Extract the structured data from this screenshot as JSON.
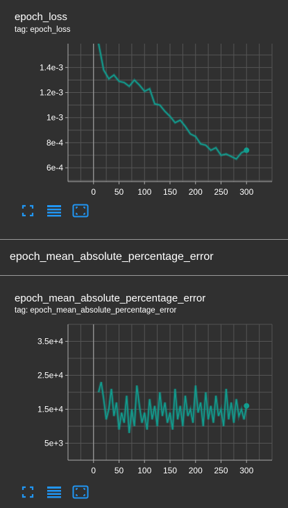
{
  "cards": [
    {
      "title": "epoch_loss",
      "tag": "tag: epoch_loss"
    },
    {
      "title": "epoch_mean_absolute_percentage_error",
      "tag": "tag: epoch_mean_absolute_percentage_error"
    }
  ],
  "section": {
    "title": "epoch_mean_absolute_percentage_error"
  },
  "toolbar": {
    "icons": [
      "fullscreen-icon",
      "list-icon",
      "fit-domain-icon"
    ]
  },
  "colors": {
    "series": "#129c8e",
    "axis": "#aaaaaa",
    "grid": "#555555",
    "accent": "#2196f3"
  },
  "chart_data": [
    {
      "type": "line",
      "title": "epoch_loss",
      "xlabel": "",
      "ylabel": "",
      "xticks": [
        0,
        50,
        100,
        150,
        200,
        250,
        300
      ],
      "yticks": [
        "6e-4",
        "8e-4",
        "1e-3",
        "1.2e-3",
        "1.4e-3"
      ],
      "ytick_values": [
        0.0006,
        0.0008,
        0.001,
        0.0012,
        0.0014
      ],
      "xlim": [
        -50,
        350
      ],
      "ylim": [
        0.00049,
        0.00159
      ],
      "grid": true,
      "series": [
        {
          "x": [
            10,
            20,
            30,
            40,
            50,
            60,
            70,
            80,
            90,
            100,
            110,
            120,
            130,
            140,
            150,
            160,
            170,
            180,
            190,
            200,
            210,
            220,
            230,
            240,
            250,
            260,
            270,
            280,
            290,
            300
          ],
          "y": [
            0.00159,
            0.00138,
            0.00131,
            0.00134,
            0.00129,
            0.00128,
            0.00125,
            0.0013,
            0.00126,
            0.00121,
            0.00123,
            0.00111,
            0.0011,
            0.00105,
            0.00101,
            0.00096,
            0.00098,
            0.00093,
            0.00087,
            0.00085,
            0.00079,
            0.00078,
            0.00074,
            0.00076,
            0.0007,
            0.00071,
            0.00069,
            0.00067,
            0.00072,
            0.00074
          ]
        }
      ]
    },
    {
      "type": "line",
      "title": "epoch_mean_absolute_percentage_error",
      "xlabel": "",
      "ylabel": "",
      "xticks": [
        0,
        50,
        100,
        150,
        200,
        250,
        300
      ],
      "yticks": [
        "5e+3",
        "1.5e+4",
        "2.5e+4",
        "3.5e+4"
      ],
      "ytick_values": [
        5000,
        15000,
        25000,
        35000
      ],
      "xlim": [
        -50,
        350
      ],
      "ylim": [
        0,
        40000
      ],
      "grid": true,
      "series": [
        {
          "x": [
            10,
            15,
            20,
            25,
            30,
            35,
            40,
            45,
            50,
            55,
            60,
            65,
            70,
            75,
            80,
            85,
            90,
            95,
            100,
            105,
            110,
            115,
            120,
            125,
            130,
            135,
            140,
            145,
            150,
            155,
            160,
            165,
            170,
            175,
            180,
            185,
            190,
            195,
            200,
            205,
            210,
            215,
            220,
            225,
            230,
            235,
            240,
            245,
            250,
            255,
            260,
            265,
            270,
            275,
            280,
            285,
            290,
            295,
            300
          ],
          "y": [
            20000,
            23000,
            18000,
            12000,
            15000,
            21000,
            13000,
            17000,
            9000,
            14000,
            11000,
            19000,
            8000,
            15000,
            10000,
            22000,
            16000,
            11000,
            14000,
            9000,
            18000,
            12000,
            16000,
            10000,
            20000,
            13000,
            17000,
            11000,
            14000,
            9000,
            21000,
            12000,
            16000,
            10000,
            19000,
            13000,
            15000,
            11000,
            22000,
            14000,
            17000,
            10000,
            20000,
            12000,
            16000,
            11000,
            19000,
            13000,
            15000,
            10000,
            21000,
            12000,
            17000,
            11000,
            18000,
            13000,
            15000,
            12000,
            16000
          ]
        }
      ]
    }
  ]
}
